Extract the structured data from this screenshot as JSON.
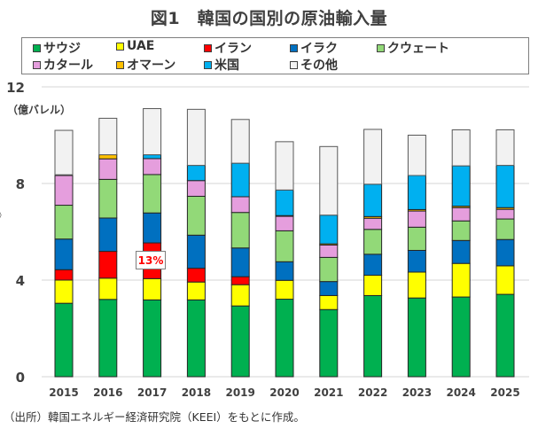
{
  "chart_data": {
    "type": "bar",
    "stacked": true,
    "title": "図1　韓国の国別の原油輸入量",
    "ylabel": "（億バレル）",
    "xlabel": "",
    "ylim": [
      0,
      12
    ],
    "yticks": [
      0,
      4,
      8,
      12
    ],
    "grid": true,
    "legend_position": "top",
    "categories": [
      "2015",
      "2016",
      "2017",
      "2018",
      "2019",
      "2020",
      "2021",
      "2022",
      "2023",
      "2024",
      "2025"
    ],
    "series": [
      {
        "name": "サウジ",
        "color": "#00b050",
        "values": [
          3.04,
          3.2,
          3.18,
          3.18,
          2.93,
          3.21,
          2.78,
          3.36,
          3.26,
          3.3,
          3.41
        ]
      },
      {
        "name": "UAE",
        "color": "#ffff00",
        "values": [
          0.96,
          0.88,
          0.88,
          0.74,
          0.88,
          0.78,
          0.58,
          0.84,
          1.07,
          1.39,
          1.18
        ]
      },
      {
        "name": "イラン",
        "color": "#ff0000",
        "values": [
          0.43,
          1.11,
          1.48,
          0.57,
          0.33,
          0,
          0,
          0,
          0,
          0,
          0
        ]
      },
      {
        "name": "イラク",
        "color": "#0070c0",
        "values": [
          1.27,
          1.38,
          1.24,
          1.37,
          1.19,
          0.77,
          0.58,
          0.87,
          0.9,
          0.95,
          1.09
        ]
      },
      {
        "name": "クウェート",
        "color": "#92d978",
        "values": [
          1.4,
          1.6,
          1.59,
          1.61,
          1.47,
          1.28,
          1.0,
          1.03,
          0.96,
          0.81,
          0.85
        ]
      },
      {
        "name": "カタール",
        "color": "#e59edd",
        "values": [
          1.23,
          0.85,
          0.66,
          0.65,
          0.65,
          0.6,
          0.51,
          0.46,
          0.67,
          0.55,
          0.4
        ]
      },
      {
        "name": "オマーン",
        "color": "#ffc000",
        "values": [
          0.03,
          0.17,
          0,
          0,
          0,
          0.03,
          0.05,
          0.07,
          0.06,
          0.06,
          0.07
        ]
      },
      {
        "name": "米国",
        "color": "#00b0f0",
        "values": [
          0,
          0,
          0.16,
          0.63,
          1.39,
          1.06,
          1.19,
          1.34,
          1.41,
          1.67,
          1.75
        ]
      },
      {
        "name": "その他",
        "color": "#f2f2f2",
        "values": [
          1.84,
          1.51,
          1.91,
          2.32,
          1.81,
          2.0,
          2.84,
          2.27,
          1.67,
          1.49,
          1.47
        ]
      }
    ],
    "annotations": [
      {
        "text": "13%",
        "category": "2017",
        "series": "イラン",
        "color": "#ff0000"
      }
    ]
  },
  "source_note": "（出所）韓国エネルギー経済研究院（KEEI）をもとに作成。",
  "edge_glyph": "》"
}
